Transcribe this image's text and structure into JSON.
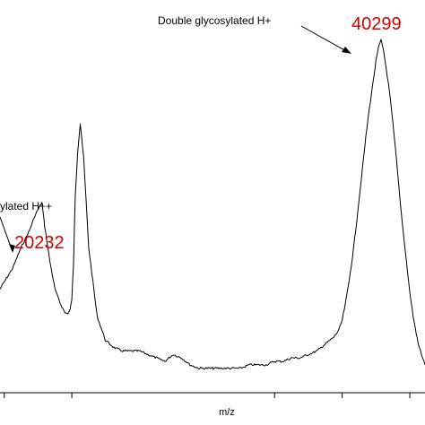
{
  "chart_data": {
    "type": "line",
    "title": "",
    "xlabel": "m/z",
    "ylabel": "",
    "xlim": [
      17750,
      42900
    ],
    "ylim": [
      0,
      100
    ],
    "grid": false,
    "legend": "none",
    "line_color": "#000000",
    "x_ticks": [
      18000,
      22000,
      34000,
      38000,
      42000
    ],
    "series": [
      {
        "x": [
          17750,
          18000,
          18500,
          19000,
          19500,
          19800,
          20000,
          20232,
          20400,
          20700,
          21000,
          21300,
          21600,
          21800,
          21900,
          22000,
          22100,
          22200,
          22350,
          22500,
          22700,
          23000,
          23500,
          24000,
          24500,
          25000,
          25500,
          26000,
          26500,
          27000,
          27500,
          28000,
          28500,
          29000,
          29500,
          30000,
          30500,
          31000,
          31500,
          32000,
          32500,
          33000,
          33500,
          34000,
          34500,
          35000,
          35500,
          36000,
          36500,
          37000,
          37500,
          37800,
          38000,
          38200,
          38400,
          38600,
          38800,
          39000,
          39200,
          39400,
          39600,
          39800,
          40000,
          40150,
          40299,
          40450,
          40600,
          40800,
          41000,
          41200,
          41400,
          41600,
          41800,
          42000,
          42200,
          42500,
          42900
        ],
        "values": [
          28,
          30,
          34,
          40,
          45,
          49,
          51,
          53,
          46,
          36,
          28,
          24,
          21,
          21,
          22,
          25,
          35,
          55,
          68,
          76,
          66,
          40,
          20,
          13,
          11,
          10,
          10,
          10,
          9,
          8,
          7,
          9,
          8,
          6,
          5,
          5,
          5,
          5,
          5,
          5,
          6,
          6,
          6,
          7,
          7,
          8,
          8,
          9,
          10,
          12,
          14,
          16,
          19,
          24,
          30,
          37,
          45,
          54,
          63,
          72,
          80,
          87,
          94,
          98,
          100,
          97,
          92,
          85,
          76,
          66,
          55,
          45,
          36,
          27,
          20,
          12,
          6
        ]
      }
    ],
    "annotations": [
      {
        "text": "Double glycosylated H+",
        "x": 40299,
        "y": 100
      },
      {
        "text": "ylated H++",
        "x": 20232,
        "y": 53
      }
    ],
    "peak_labels": [
      {
        "text": "40299",
        "x": 40299,
        "color": "#d40000"
      },
      {
        "text": "20232",
        "x": 20232,
        "color": "#d40000"
      }
    ]
  }
}
